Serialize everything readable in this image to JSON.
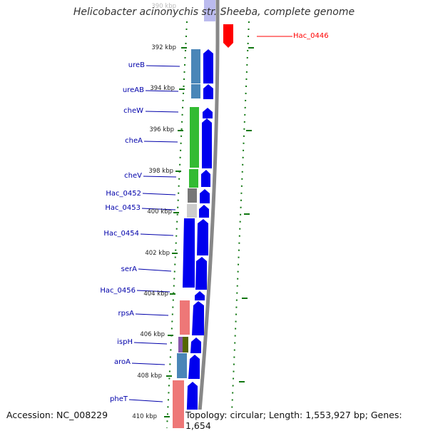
{
  "title": "Helicobacter acinonychis str. Sheeba, complete genome",
  "accession": "Accession: NC_008229",
  "topology": "Topology: circular; Length: 1,553,927 bp; Genes: 1,654",
  "colors": {
    "cds": "#0000ee",
    "highlight": "#ff0000",
    "label": "#0000aa",
    "tick": "#117711",
    "backbone": "#888888"
  },
  "scale_labels": [
    "390 kbp",
    "392 kbp",
    "394 kbp",
    "396 kbp",
    "398 kbp",
    "400 kbp",
    "402 kbp",
    "404 kbp",
    "406 kbp",
    "408 kbp",
    "410 kbp"
  ],
  "genes": [
    {
      "name": "ureB",
      "color": "#4a86b8"
    },
    {
      "name": "ureAB",
      "color": "#4a86b8"
    },
    {
      "name": "cheW",
      "color": "#33bb33"
    },
    {
      "name": "cheA",
      "color": "#33bb33"
    },
    {
      "name": "cheV",
      "color": "#33bb33"
    },
    {
      "name": "Hac_0452",
      "color": "#777777"
    },
    {
      "name": "Hac_0453",
      "color": "#cccccc"
    },
    {
      "name": "Hac_0454",
      "color": "#0000ee"
    },
    {
      "name": "serA",
      "color": "#4a86b8"
    },
    {
      "name": "Hac_0456",
      "color": "#0000ee"
    },
    {
      "name": "rpsA",
      "color": "#ee7777"
    },
    {
      "name": "ispH",
      "color": "#8855aa"
    },
    {
      "name": "aroA",
      "color": "#4a86b8"
    },
    {
      "name": "pheT",
      "color": "#ee7777"
    }
  ],
  "highlight_gene": "Hac_0446"
}
